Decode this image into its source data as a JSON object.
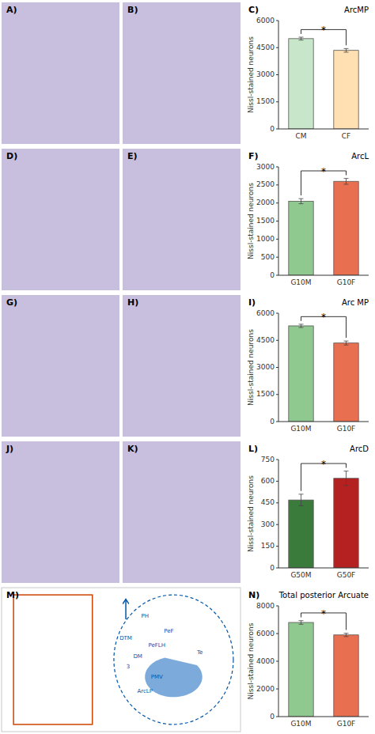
{
  "chart_data": [
    {
      "type": "bar",
      "title": "ArcMP",
      "y_label": "Nissl-stained neurons",
      "categories": [
        "CM",
        "CF"
      ],
      "values": [
        5000,
        4350
      ],
      "errors": [
        80,
        100
      ],
      "colors": [
        "#c8e6c9",
        "#ffe0b2"
      ],
      "ylim": [
        0,
        6000
      ],
      "yticks": [
        0,
        1500,
        3000,
        4500,
        6000
      ],
      "grid": false,
      "annotations": [
        "C)",
        "*",
        "A)",
        "B)"
      ]
    },
    {
      "type": "bar",
      "title": "ArcL",
      "y_label": "Nissl-stained neurons",
      "categories": [
        "G10M",
        "G10F"
      ],
      "values": [
        2050,
        2600
      ],
      "errors": [
        70,
        80
      ],
      "colors": [
        "#90c990",
        "#e87050"
      ],
      "ylim": [
        0,
        3000
      ],
      "yticks": [
        0,
        500,
        1000,
        1500,
        2000,
        2500,
        3000
      ],
      "grid": false,
      "annotations": [
        "F)",
        "*",
        "D)",
        "E)"
      ]
    },
    {
      "type": "bar",
      "title": "Arc MP",
      "y_label": "Nissl-stained neurons",
      "categories": [
        "G10M",
        "G10F"
      ],
      "values": [
        5300,
        4350
      ],
      "errors": [
        90,
        110
      ],
      "colors": [
        "#90c990",
        "#e87050"
      ],
      "ylim": [
        0,
        6000
      ],
      "yticks": [
        0,
        1500,
        3000,
        4500,
        6000
      ],
      "grid": false,
      "annotations": [
        "I)",
        "*",
        "G)",
        "H)"
      ]
    },
    {
      "type": "bar",
      "title": "ArcD",
      "y_label": "Nissl-stained neurons",
      "categories": [
        "G50M",
        "G50F"
      ],
      "values": [
        470,
        620
      ],
      "errors": [
        40,
        50
      ],
      "colors": [
        "#3a7a3a",
        "#b52020"
      ],
      "ylim": [
        0,
        750
      ],
      "yticks": [
        0,
        150,
        300,
        450,
        600,
        750
      ],
      "grid": false,
      "annotations": [
        "L)",
        "*",
        "J)",
        "K)"
      ]
    },
    {
      "type": "bar",
      "title": "Total posterior Arcuate",
      "y_label": "Nissl-stained neurons",
      "categories": [
        "G10M",
        "G10F"
      ],
      "values": [
        6800,
        5900
      ],
      "errors": [
        130,
        120
      ],
      "colors": [
        "#90c990",
        "#e87050"
      ],
      "ylim": [
        0,
        8000
      ],
      "yticks": [
        0,
        2000,
        4000,
        6000,
        8000
      ],
      "grid": false,
      "annotations": [
        "N)",
        "*",
        "M)",
        "PH",
        "DM",
        "DTM",
        "PeF",
        "PeFLH",
        "PMV",
        "Te",
        "ArcLP",
        "3"
      ]
    }
  ]
}
